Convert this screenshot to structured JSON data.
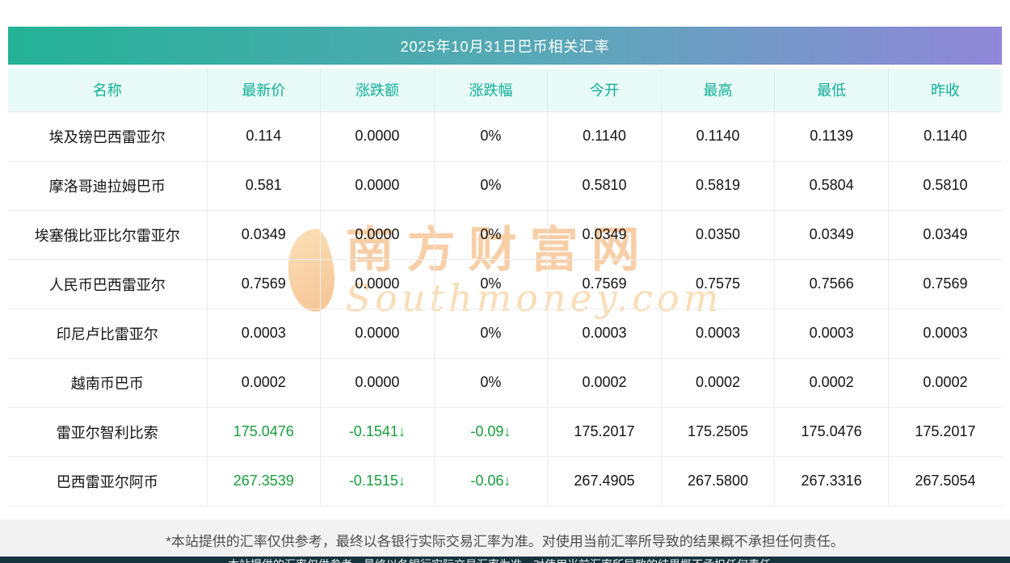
{
  "title": "2025年10月31日巴币相关汇率",
  "watermark": {
    "cn": "南方财富网",
    "en": "Southmoney.com"
  },
  "disclaimer": "*本站提供的汇率仅供参考，最终以各银行实际交易汇率为准。对使用当前汇率所导致的结果概不承担任何责任。",
  "bottom_bar_text": "本站提供的汇率仅供参考，最终以各银行实际交易汇率为准。对使用当前汇率所导致的结果概不承担任何责任。",
  "colors": {
    "header_gradient_start": "#23b295",
    "header_gradient_end": "#9186d8",
    "table_header_bg": "#e9fbf7",
    "table_header_text": "#10ae97",
    "negative_green": "#189e3b",
    "watermark_orange": "#f2a65e",
    "disclaimer_bg": "#f2f2f2"
  },
  "chart_data": {
    "type": "table",
    "title": "2025年10月31日巴币相关汇率",
    "headers": [
      "名称",
      "最新价",
      "涨跌额",
      "涨跌幅",
      "今开",
      "最高",
      "最低",
      "昨收"
    ],
    "rows": [
      [
        "埃及镑巴西雷亚尔",
        "0.114",
        "0.0000",
        "0%",
        "0.1140",
        "0.1140",
        "0.1139",
        "0.1140"
      ],
      [
        "摩洛哥迪拉姆巴币",
        "0.581",
        "0.0000",
        "0%",
        "0.5810",
        "0.5819",
        "0.5804",
        "0.5810"
      ],
      [
        "埃塞俄比亚比尔雷亚尔",
        "0.0349",
        "0.0000",
        "0%",
        "0.0349",
        "0.0350",
        "0.0349",
        "0.0349"
      ],
      [
        "人民币巴西雷亚尔",
        "0.7569",
        "0.0000",
        "0%",
        "0.7569",
        "0.7575",
        "0.7566",
        "0.7569"
      ],
      [
        "印尼卢比雷亚尔",
        "0.0003",
        "0.0000",
        "0%",
        "0.0003",
        "0.0003",
        "0.0003",
        "0.0003"
      ],
      [
        "越南币巴币",
        "0.0002",
        "0.0000",
        "0%",
        "0.0002",
        "0.0002",
        "0.0002",
        "0.0002"
      ],
      [
        "雷亚尔智利比索",
        "175.0476",
        "-0.1541↓",
        "-0.09↓",
        "175.2017",
        "175.2505",
        "175.0476",
        "175.2017"
      ],
      [
        "巴西雷亚尔阿币",
        "267.3539",
        "-0.1515↓",
        "-0.06↓",
        "267.4905",
        "267.5800",
        "267.3316",
        "267.5054"
      ]
    ],
    "row_trends": [
      "flat",
      "flat",
      "flat",
      "flat",
      "flat",
      "flat",
      "down",
      "down"
    ],
    "legend_position": "none",
    "grid": true
  }
}
